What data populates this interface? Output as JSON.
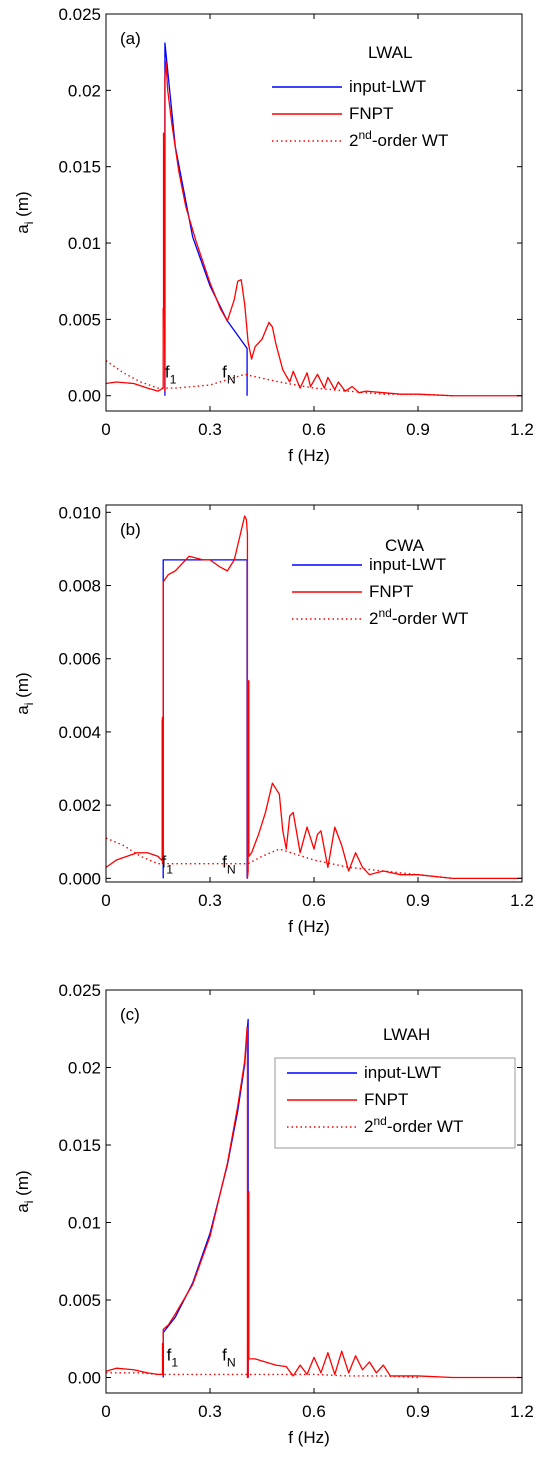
{
  "figure": {
    "legend_order": [
      "input-LWT",
      "FNPT",
      "2nd-order WT"
    ],
    "colors": {
      "input": "#0000ff",
      "fnpt": "#ff0000",
      "second_order": "#ff0000",
      "axis": "#000000"
    }
  },
  "chart_data": [
    {
      "type": "line",
      "panel_label": "(a)",
      "case_label": "LWAL",
      "xlabel": "f (Hz)",
      "ylabel_main": "a",
      "ylabel_sub": "i",
      "ylabel_unit": " (m)",
      "xlim": [
        0,
        1.2
      ],
      "ylim": [
        -0.001,
        0.025
      ],
      "xticks": [
        0,
        0.3,
        0.6,
        0.9,
        1.2
      ],
      "xtick_labels": [
        "0",
        "0.3",
        "0.6",
        "0.9",
        "1.2"
      ],
      "yticks": [
        0,
        0.005,
        0.01,
        0.015,
        0.02,
        0.025
      ],
      "ytick_labels": [
        "0.00",
        "0.005",
        "0.01",
        "0.015",
        "0.02",
        "0.025"
      ],
      "legend": {
        "position": "top-right",
        "boxed": false,
        "entries": [
          {
            "text": "input-LWT",
            "series": "input"
          },
          {
            "text": "FNPT",
            "series": "fnpt"
          },
          {
            "prefix": "2",
            "sup": "nd",
            "suffix": "-order WT",
            "series": "second_order"
          }
        ]
      },
      "markers": [
        {
          "main": "f",
          "sub": "1",
          "x": 0.17,
          "y": 0.0012
        },
        {
          "main": "f",
          "sub": "N",
          "x": 0.335,
          "y": 0.0012
        }
      ],
      "series": [
        {
          "name": "input-LWT",
          "key": "input",
          "style": "solid",
          "x": [
            0.17,
            0.17,
            0.2,
            0.25,
            0.3,
            0.35,
            0.407,
            0.407
          ],
          "y": [
            0,
            0.0231,
            0.0163,
            0.0104,
            0.0072,
            0.0049,
            0.0031,
            0
          ]
        },
        {
          "name": "FNPT",
          "key": "fnpt",
          "style": "solid",
          "x": [
            0,
            0.03,
            0.08,
            0.12,
            0.15,
            0.165,
            0.165,
            0.166,
            0.166,
            0.17,
            0.17,
            0.173,
            0.178,
            0.19,
            0.21,
            0.23,
            0.26,
            0.3,
            0.33,
            0.35,
            0.37,
            0.38,
            0.39,
            0.4,
            0.41,
            0.42,
            0.43,
            0.45,
            0.47,
            0.48,
            0.49,
            0.51,
            0.53,
            0.54,
            0.56,
            0.58,
            0.59,
            0.61,
            0.63,
            0.64,
            0.66,
            0.67,
            0.69,
            0.71,
            0.73,
            0.75,
            0.8,
            0.85,
            0.9,
            1.0,
            1.1,
            1.2
          ],
          "y": [
            0.0008,
            0.0009,
            0.0008,
            0.0005,
            0.0003,
            0.0005,
            0.0057,
            0.0058,
            0.0172,
            0.0003,
            0.0208,
            0.0219,
            0.02,
            0.0178,
            0.0147,
            0.0124,
            0.0101,
            0.0074,
            0.0057,
            0.0049,
            0.0063,
            0.0075,
            0.0076,
            0.006,
            0.0035,
            0.0024,
            0.0032,
            0.0037,
            0.0048,
            0.0045,
            0.0034,
            0.0017,
            0.0009,
            0.0016,
            0.0005,
            0.0015,
            0.0006,
            0.0014,
            0.0005,
            0.0012,
            0.0004,
            0.0009,
            0.0003,
            0.0006,
            0.0002,
            0.0003,
            0.0002,
            0.0001,
            0.0001,
            0.0,
            0.0,
            0.0
          ]
        },
        {
          "name": "2nd-order WT",
          "key": "second_order",
          "style": "dotted",
          "x": [
            0,
            0.05,
            0.1,
            0.15,
            0.2,
            0.3,
            0.4,
            0.5,
            0.6,
            0.7,
            0.8,
            0.9,
            1.0
          ],
          "y": [
            0.0023,
            0.0015,
            0.0009,
            0.0005,
            0.0005,
            0.0007,
            0.0014,
            0.0009,
            0.0005,
            0.0003,
            0.0001,
            0.0001,
            0.0
          ]
        }
      ]
    },
    {
      "type": "line",
      "panel_label": "(b)",
      "case_label": "CWA",
      "xlabel": "f (Hz)",
      "ylabel_main": "a",
      "ylabel_sub": "i",
      "ylabel_unit": " (m)",
      "xlim": [
        0,
        1.2
      ],
      "ylim": [
        -0.0001,
        0.0102
      ],
      "xticks": [
        0,
        0.3,
        0.6,
        0.9,
        1.2
      ],
      "xtick_labels": [
        "0",
        "0.3",
        "0.6",
        "0.9",
        "1.2"
      ],
      "yticks": [
        0,
        0.002,
        0.004,
        0.006,
        0.008,
        0.01
      ],
      "ytick_labels": [
        "0.000",
        "0.002",
        "0.004",
        "0.006",
        "0.008",
        "0.010"
      ],
      "legend": {
        "position": "top-right",
        "boxed": false,
        "entries": [
          {
            "text": "input-LWT",
            "series": "input"
          },
          {
            "text": "FNPT",
            "series": "fnpt"
          },
          {
            "prefix": "2",
            "sup": "nd",
            "suffix": "-order WT",
            "series": "second_order"
          }
        ]
      },
      "markers": [
        {
          "main": "f",
          "sub": "1",
          "x": 0.16,
          "y": 0.0003
        },
        {
          "main": "f",
          "sub": "N",
          "x": 0.335,
          "y": 0.0003
        }
      ],
      "series": [
        {
          "name": "input-LWT",
          "key": "input",
          "style": "solid",
          "x": [
            0.165,
            0.165,
            0.407,
            0.407
          ],
          "y": [
            0,
            0.0087,
            0.0087,
            0
          ]
        },
        {
          "name": "FNPT",
          "key": "fnpt",
          "style": "solid",
          "x": [
            0,
            0.03,
            0.06,
            0.09,
            0.12,
            0.15,
            0.16,
            0.162,
            0.162,
            0.163,
            0.163,
            0.165,
            0.165,
            0.18,
            0.2,
            0.24,
            0.28,
            0.3,
            0.33,
            0.35,
            0.37,
            0.39,
            0.4,
            0.405,
            0.408,
            0.408,
            0.41,
            0.41,
            0.412,
            0.412,
            0.42,
            0.44,
            0.46,
            0.48,
            0.5,
            0.51,
            0.52,
            0.53,
            0.54,
            0.56,
            0.58,
            0.6,
            0.61,
            0.62,
            0.64,
            0.66,
            0.68,
            0.7,
            0.72,
            0.74,
            0.76,
            0.8,
            0.85,
            0.9,
            1.0,
            1.1,
            1.2
          ],
          "y": [
            0.0003,
            0.0005,
            0.0006,
            0.0007,
            0.0007,
            0.0006,
            0.0005,
            0.0005,
            0.0043,
            0.0044,
            0.0004,
            0.0004,
            0.0081,
            0.0083,
            0.0084,
            0.0088,
            0.0087,
            0.0087,
            0.0085,
            0.0084,
            0.0087,
            0.0095,
            0.0099,
            0.0098,
            0.0094,
            0.0,
            0.0002,
            0.0053,
            0.0054,
            0.0006,
            0.0007,
            0.0012,
            0.0018,
            0.0026,
            0.0023,
            0.0013,
            0.0008,
            0.0017,
            0.0018,
            0.0007,
            0.0014,
            0.0008,
            0.0012,
            0.0013,
            0.0003,
            0.0014,
            0.0009,
            0.0002,
            0.0007,
            0.0003,
            0.0001,
            0.0002,
            0.0001,
            0.0001,
            0.0,
            0.0,
            0.0
          ]
        },
        {
          "name": "2nd-order WT",
          "key": "second_order",
          "style": "dotted",
          "x": [
            0,
            0.05,
            0.1,
            0.15,
            0.2,
            0.3,
            0.41,
            0.45,
            0.5,
            0.6,
            0.7,
            0.8,
            0.9,
            1.0
          ],
          "y": [
            0.0011,
            0.0009,
            0.0006,
            0.0004,
            0.0004,
            0.0004,
            0.0004,
            0.0006,
            0.0008,
            0.0005,
            0.0003,
            0.0002,
            0.0001,
            0.0
          ]
        }
      ]
    },
    {
      "type": "line",
      "panel_label": "(c)",
      "case_label": "LWAH",
      "xlabel": "f (Hz)",
      "ylabel_main": "a",
      "ylabel_sub": "i",
      "ylabel_unit": " (m)",
      "xlim": [
        0,
        1.2
      ],
      "ylim": [
        -0.001,
        0.025
      ],
      "xticks": [
        0,
        0.3,
        0.6,
        0.9,
        1.2
      ],
      "xtick_labels": [
        "0",
        "0.3",
        "0.6",
        "0.9",
        "1.2"
      ],
      "yticks": [
        0,
        0.005,
        0.01,
        0.015,
        0.02,
        0.025
      ],
      "ytick_labels": [
        "0.00",
        "0.005",
        "0.01",
        "0.015",
        "0.02",
        "0.025"
      ],
      "legend": {
        "position": "top-right",
        "boxed": true,
        "entries": [
          {
            "text": "input-LWT",
            "series": "input"
          },
          {
            "text": "FNPT",
            "series": "fnpt"
          },
          {
            "prefix": "2",
            "sup": "nd",
            "suffix": "-order WT",
            "series": "second_order"
          }
        ]
      },
      "markers": [
        {
          "main": "f",
          "sub": "1",
          "x": 0.175,
          "y": 0.0011
        },
        {
          "main": "f",
          "sub": "N",
          "x": 0.335,
          "y": 0.0011
        }
      ],
      "series": [
        {
          "name": "input-LWT",
          "key": "input",
          "style": "solid",
          "x": [
            0.165,
            0.165,
            0.2,
            0.25,
            0.3,
            0.35,
            0.38,
            0.4,
            0.41,
            0.41
          ],
          "y": [
            0,
            0.0029,
            0.0039,
            0.0061,
            0.0093,
            0.0137,
            0.0172,
            0.0202,
            0.0231,
            0
          ]
        },
        {
          "name": "FNPT",
          "key": "fnpt",
          "style": "solid",
          "x": [
            0,
            0.03,
            0.08,
            0.12,
            0.15,
            0.16,
            0.163,
            0.163,
            0.165,
            0.165,
            0.18,
            0.2,
            0.25,
            0.3,
            0.35,
            0.38,
            0.4,
            0.407,
            0.408,
            0.408,
            0.41,
            0.412,
            0.412,
            0.415,
            0.43,
            0.46,
            0.49,
            0.52,
            0.54,
            0.56,
            0.58,
            0.6,
            0.62,
            0.64,
            0.66,
            0.68,
            0.7,
            0.72,
            0.74,
            0.76,
            0.78,
            0.8,
            0.82,
            0.85,
            0.9,
            1.0,
            1.1,
            1.2
          ],
          "y": [
            0.0004,
            0.0006,
            0.0005,
            0.0003,
            0.0002,
            0.0002,
            0.0002,
            0.0022,
            0.0022,
            0.0031,
            0.0034,
            0.0041,
            0.006,
            0.0091,
            0.0138,
            0.0175,
            0.0204,
            0.0226,
            0.0225,
            0.0,
            0.0,
            0.012,
            0.0012,
            0.0012,
            0.0012,
            0.001,
            0.0008,
            0.0007,
            0.0001,
            0.0008,
            0.0002,
            0.0013,
            0.0003,
            0.0016,
            0.0002,
            0.0017,
            0.0003,
            0.0014,
            0.0005,
            0.001,
            0.0003,
            0.0008,
            0.0001,
            0.0001,
            0.0001,
            0.0,
            0.0,
            0.0
          ]
        },
        {
          "name": "2nd-order WT",
          "key": "second_order",
          "style": "dotted",
          "x": [
            0,
            0.05,
            0.1,
            0.15,
            0.2,
            0.3,
            0.4,
            0.5,
            0.6,
            0.7,
            0.8,
            0.9
          ],
          "y": [
            0.0003,
            0.0003,
            0.0003,
            0.0002,
            0.0002,
            0.0002,
            0.0002,
            0.0002,
            0.0002,
            0.0001,
            0.0001,
            0.0
          ]
        }
      ]
    }
  ]
}
